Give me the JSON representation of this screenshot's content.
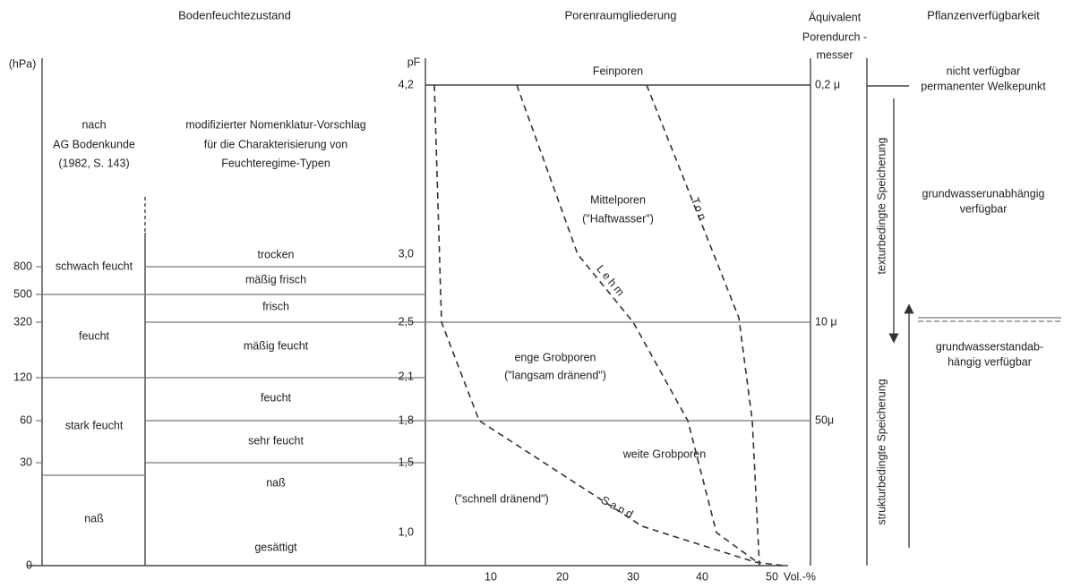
{
  "headers": {
    "moisture": "Bodenfeuchtezustand",
    "pores": "Porenraumgliederung",
    "diameter": [
      "Äquivalent",
      "Porendurch -",
      "messer"
    ],
    "availability": "Pflanzenverfügbarkeit"
  },
  "axes": {
    "hpa_unit": "(hPa)",
    "pf_unit": "pF",
    "x_unit": "Vol.-%",
    "hpa_ticks": [
      "800",
      "500",
      "320",
      "120",
      "60",
      "30",
      "0"
    ],
    "pf_ticks": [
      "4,2",
      "3,0",
      "2,5",
      "2,1",
      "1,8",
      "1,5",
      "1,0"
    ],
    "x_ticks": [
      "10",
      "20",
      "30",
      "40",
      "50"
    ],
    "diameters": [
      "0,2 μ",
      "10 μ",
      "50μ"
    ]
  },
  "moisture": {
    "ag_note": [
      "nach",
      "AG Bodenkunde",
      "(1982, S. 143)"
    ],
    "proposal_note": [
      "modifizierter Nomenklatur-Vorschlag",
      "für die Charakterisierung von",
      "Feuchteregime-Typen"
    ],
    "ag_classes": [
      "schwach feucht",
      "feucht",
      "stark feucht",
      "naß"
    ],
    "proposal_classes": [
      "trocken",
      "mäßig frisch",
      "frisch",
      "mäßig feucht",
      "feucht",
      "sehr feucht",
      "naß",
      "gesättigt"
    ]
  },
  "pores": {
    "fine": "Feinporen",
    "medium": [
      "Mittelporen",
      "(\"Haftwasser\")"
    ],
    "narrow_coarse": [
      "enge Grobporen",
      "(\"langsam dränend\")"
    ],
    "wide_coarse": "weite Grobporen",
    "wide_coarse_note": "(\"schnell dränend\")"
  },
  "curves": [
    "Ton",
    "Lehm",
    "Sand"
  ],
  "availability": {
    "not_available": [
      "nicht verfügbar",
      "permanenter Welkepunkt"
    ],
    "independent": [
      "grundwasserunabhängig",
      "verfügbar"
    ],
    "dependent": [
      "grundwasserstandab-",
      "hängig verfügbar"
    ],
    "texture": "texturbedingte Speicherung",
    "structure": "strukturbedingte Speicherung"
  }
}
